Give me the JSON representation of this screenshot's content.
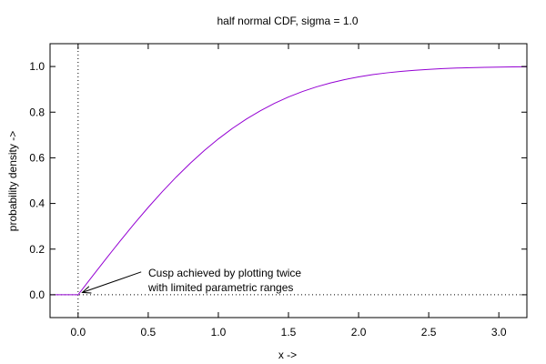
{
  "chart_data": {
    "type": "line",
    "title": "half normal CDF, sigma = 1.0",
    "xlabel": "x ->",
    "ylabel": "probability density ->",
    "xlim": [
      -0.2,
      3.2
    ],
    "ylim": [
      -0.1,
      1.1
    ],
    "x_ticks": [
      0.0,
      0.5,
      1.0,
      1.5,
      2.0,
      2.5,
      3.0
    ],
    "x_tick_labels": [
      "0.0",
      "0.5",
      "1.0",
      "1.5",
      "2.0",
      "2.5",
      "3.0"
    ],
    "y_ticks": [
      0.0,
      0.2,
      0.4,
      0.6,
      0.8,
      1.0
    ],
    "y_tick_labels": [
      "0.0",
      "0.2",
      "0.4",
      "0.6",
      "0.8",
      "1.0"
    ],
    "zero_axes": {
      "x0_line": true,
      "y0_line": true,
      "style": "dotted"
    },
    "series": [
      {
        "color": "#9400d3",
        "points": [
          [
            -0.2,
            0.0
          ],
          [
            -0.1,
            0.0
          ],
          [
            0.0,
            0.0
          ],
          [
            0.1,
            0.0797
          ],
          [
            0.2,
            0.1585
          ],
          [
            0.3,
            0.2358
          ],
          [
            0.4,
            0.3108
          ],
          [
            0.5,
            0.3829
          ],
          [
            0.6,
            0.4515
          ],
          [
            0.7,
            0.5161
          ],
          [
            0.8,
            0.5763
          ],
          [
            0.9,
            0.6319
          ],
          [
            1.0,
            0.6827
          ],
          [
            1.1,
            0.7287
          ],
          [
            1.2,
            0.7699
          ],
          [
            1.3,
            0.8064
          ],
          [
            1.4,
            0.8385
          ],
          [
            1.5,
            0.8664
          ],
          [
            1.6,
            0.8904
          ],
          [
            1.7,
            0.9109
          ],
          [
            1.8,
            0.9281
          ],
          [
            1.9,
            0.9426
          ],
          [
            2.0,
            0.9545
          ],
          [
            2.1,
            0.9643
          ],
          [
            2.2,
            0.9722
          ],
          [
            2.3,
            0.9786
          ],
          [
            2.4,
            0.9836
          ],
          [
            2.5,
            0.9876
          ],
          [
            2.6,
            0.9907
          ],
          [
            2.7,
            0.9931
          ],
          [
            2.8,
            0.9949
          ],
          [
            2.9,
            0.9963
          ],
          [
            3.0,
            0.9973
          ],
          [
            3.1,
            0.9981
          ],
          [
            3.2,
            0.9986
          ]
        ]
      }
    ],
    "annotation": {
      "lines": [
        "Cusp achieved by plotting twice",
        "with limited parametric ranges"
      ],
      "arrow_target": [
        0.03,
        0.01
      ],
      "arrow_tail": [
        0.45,
        0.1
      ]
    }
  }
}
